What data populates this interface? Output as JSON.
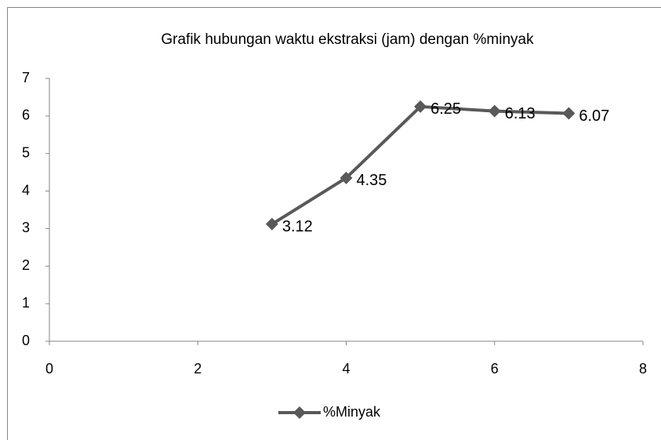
{
  "chart_data": {
    "type": "line",
    "title": "Grafik hubungan waktu ekstraksi (jam) dengan %minyak",
    "x": [
      3,
      4,
      5,
      6,
      7
    ],
    "series": [
      {
        "name": "%Minyak",
        "color": "#595959",
        "values": [
          3.12,
          4.35,
          6.25,
          6.13,
          6.07
        ]
      }
    ],
    "xlim": [
      0,
      8
    ],
    "xticks": [
      0,
      2,
      4,
      6,
      8
    ],
    "ylim": [
      0,
      7
    ],
    "yticks": [
      0,
      1,
      2,
      3,
      4,
      5,
      6,
      7
    ],
    "grid": false,
    "legend": "bottom",
    "data_labels": true
  }
}
